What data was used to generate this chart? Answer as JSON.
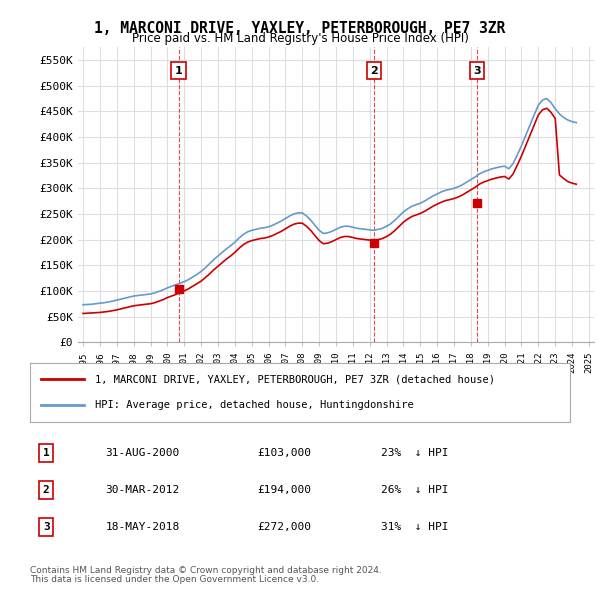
{
  "title": "1, MARCONI DRIVE, YAXLEY, PETERBOROUGH, PE7 3ZR",
  "subtitle": "Price paid vs. HM Land Registry's House Price Index (HPI)",
  "ylim": [
    0,
    575000
  ],
  "yticks": [
    0,
    50000,
    100000,
    150000,
    200000,
    250000,
    300000,
    350000,
    400000,
    450000,
    500000,
    550000
  ],
  "ytick_labels": [
    "£0",
    "£50K",
    "£100K",
    "£150K",
    "£200K",
    "£250K",
    "£300K",
    "£350K",
    "£400K",
    "£450K",
    "£500K",
    "£550K"
  ],
  "legend_label_red": "1, MARCONI DRIVE, YAXLEY, PETERBOROUGH, PE7 3ZR (detached house)",
  "legend_label_blue": "HPI: Average price, detached house, Huntingdonshire",
  "red_color": "#cc0000",
  "blue_color": "#6699cc",
  "grid_color": "#dddddd",
  "background_color": "#ffffff",
  "sale_markers": [
    {
      "num": 1,
      "year": 2000.67,
      "price": 103000,
      "date": "31-AUG-2000",
      "pct": "23%",
      "dir": "↓"
    },
    {
      "num": 2,
      "year": 2012.25,
      "price": 194000,
      "date": "30-MAR-2012",
      "pct": "26%",
      "dir": "↓"
    },
    {
      "num": 3,
      "year": 2018.38,
      "price": 272000,
      "date": "18-MAY-2018",
      "pct": "31%",
      "dir": "↓"
    }
  ],
  "footer_line1": "Contains HM Land Registry data © Crown copyright and database right 2024.",
  "footer_line2": "This data is licensed under the Open Government Licence v3.0.",
  "hpi_data": {
    "years": [
      1995,
      1995.25,
      1995.5,
      1995.75,
      1996,
      1996.25,
      1996.5,
      1996.75,
      1997,
      1997.25,
      1997.5,
      1997.75,
      1998,
      1998.25,
      1998.5,
      1998.75,
      1999,
      1999.25,
      1999.5,
      1999.75,
      2000,
      2000.25,
      2000.5,
      2000.75,
      2001,
      2001.25,
      2001.5,
      2001.75,
      2002,
      2002.25,
      2002.5,
      2002.75,
      2003,
      2003.25,
      2003.5,
      2003.75,
      2004,
      2004.25,
      2004.5,
      2004.75,
      2005,
      2005.25,
      2005.5,
      2005.75,
      2006,
      2006.25,
      2006.5,
      2006.75,
      2007,
      2007.25,
      2007.5,
      2007.75,
      2008,
      2008.25,
      2008.5,
      2008.75,
      2009,
      2009.25,
      2009.5,
      2009.75,
      2010,
      2010.25,
      2010.5,
      2010.75,
      2011,
      2011.25,
      2011.5,
      2011.75,
      2012,
      2012.25,
      2012.5,
      2012.75,
      2013,
      2013.25,
      2013.5,
      2013.75,
      2014,
      2014.25,
      2014.5,
      2014.75,
      2015,
      2015.25,
      2015.5,
      2015.75,
      2016,
      2016.25,
      2016.5,
      2016.75,
      2017,
      2017.25,
      2017.5,
      2017.75,
      2018,
      2018.25,
      2018.5,
      2018.75,
      2019,
      2019.25,
      2019.5,
      2019.75,
      2020,
      2020.25,
      2020.5,
      2020.75,
      2021,
      2021.25,
      2021.5,
      2021.75,
      2022,
      2022.25,
      2022.5,
      2022.75,
      2023,
      2023.25,
      2023.5,
      2023.75,
      2024,
      2024.25
    ],
    "values": [
      73000,
      73500,
      74000,
      75000,
      76000,
      77000,
      78500,
      80000,
      82000,
      84000,
      86000,
      88000,
      90000,
      91000,
      92000,
      93000,
      94000,
      96000,
      99000,
      102000,
      106000,
      109000,
      112000,
      115000,
      118000,
      122000,
      127000,
      132000,
      138000,
      145000,
      153000,
      161000,
      168000,
      175000,
      182000,
      188000,
      195000,
      203000,
      210000,
      215000,
      218000,
      220000,
      222000,
      223000,
      225000,
      228000,
      232000,
      236000,
      241000,
      246000,
      250000,
      252000,
      252000,
      246000,
      238000,
      228000,
      218000,
      212000,
      213000,
      216000,
      220000,
      224000,
      226000,
      226000,
      224000,
      222000,
      221000,
      220000,
      219000,
      218000,
      220000,
      222000,
      226000,
      231000,
      238000,
      246000,
      254000,
      260000,
      265000,
      268000,
      271000,
      275000,
      280000,
      285000,
      289000,
      293000,
      296000,
      298000,
      300000,
      303000,
      307000,
      312000,
      317000,
      322000,
      328000,
      332000,
      335000,
      338000,
      340000,
      342000,
      343000,
      338000,
      348000,
      365000,
      383000,
      403000,
      423000,
      443000,
      462000,
      472000,
      475000,
      467000,
      455000,
      445000,
      438000,
      433000,
      430000,
      428000
    ]
  },
  "red_data": {
    "years": [
      1995,
      1995.25,
      1995.5,
      1995.75,
      1996,
      1996.25,
      1996.5,
      1996.75,
      1997,
      1997.25,
      1997.5,
      1997.75,
      1998,
      1998.25,
      1998.5,
      1998.75,
      1999,
      1999.25,
      1999.5,
      1999.75,
      2000,
      2000.25,
      2000.5,
      2000.75,
      2001,
      2001.25,
      2001.5,
      2001.75,
      2002,
      2002.25,
      2002.5,
      2002.75,
      2003,
      2003.25,
      2003.5,
      2003.75,
      2004,
      2004.25,
      2004.5,
      2004.75,
      2005,
      2005.25,
      2005.5,
      2005.75,
      2006,
      2006.25,
      2006.5,
      2006.75,
      2007,
      2007.25,
      2007.5,
      2007.75,
      2008,
      2008.25,
      2008.5,
      2008.75,
      2009,
      2009.25,
      2009.5,
      2009.75,
      2010,
      2010.25,
      2010.5,
      2010.75,
      2011,
      2011.25,
      2011.5,
      2011.75,
      2012,
      2012.25,
      2012.5,
      2012.75,
      2013,
      2013.25,
      2013.5,
      2013.75,
      2014,
      2014.25,
      2014.5,
      2014.75,
      2015,
      2015.25,
      2015.5,
      2015.75,
      2016,
      2016.25,
      2016.5,
      2016.75,
      2017,
      2017.25,
      2017.5,
      2017.75,
      2018,
      2018.25,
      2018.5,
      2018.75,
      2019,
      2019.25,
      2019.5,
      2019.75,
      2020,
      2020.25,
      2020.5,
      2020.75,
      2021,
      2021.25,
      2021.5,
      2021.75,
      2022,
      2022.25,
      2022.5,
      2022.75,
      2023,
      2023.25,
      2023.5,
      2023.75,
      2024,
      2024.25
    ],
    "values": [
      56000,
      56500,
      57000,
      57500,
      58000,
      59000,
      60000,
      61500,
      63000,
      65000,
      67000,
      69000,
      71000,
      72000,
      73000,
      74000,
      75000,
      77000,
      80000,
      83000,
      87000,
      90000,
      93000,
      97000,
      100000,
      104000,
      109000,
      114000,
      119000,
      126000,
      133000,
      141000,
      148000,
      155000,
      162000,
      168000,
      175000,
      183000,
      190000,
      195000,
      198000,
      200000,
      202000,
      203000,
      205000,
      208000,
      212000,
      216000,
      221000,
      226000,
      230000,
      232000,
      232000,
      226000,
      218000,
      208000,
      198000,
      192000,
      193000,
      196000,
      200000,
      204000,
      206000,
      206000,
      204000,
      202000,
      201000,
      200000,
      199000,
      198000,
      200000,
      202000,
      206000,
      211000,
      218000,
      226000,
      234000,
      240000,
      245000,
      248000,
      251000,
      255000,
      260000,
      265000,
      269000,
      273000,
      276000,
      278000,
      280000,
      283000,
      287000,
      292000,
      297000,
      302000,
      308000,
      312000,
      315000,
      318000,
      320000,
      322000,
      323000,
      318000,
      328000,
      345000,
      363000,
      383000,
      403000,
      423000,
      443000,
      453000,
      456000,
      448000,
      436000,
      326000,
      319000,
      313000,
      310000,
      308000
    ]
  }
}
